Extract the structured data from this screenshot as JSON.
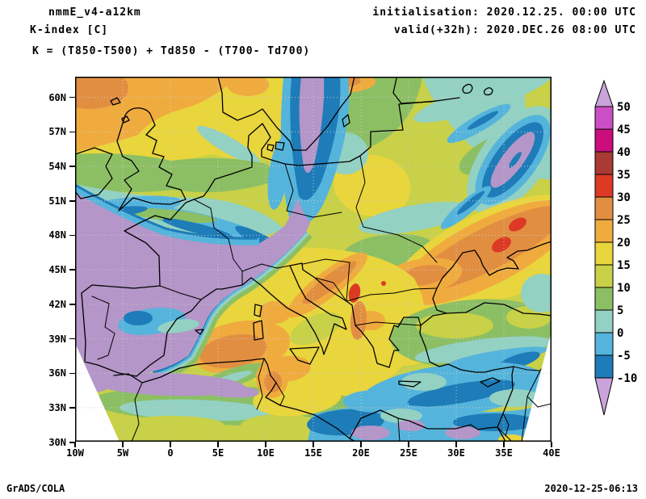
{
  "header": {
    "model": "nmmE_v4-a12km",
    "variable": "K-index [C]",
    "formula": "K = (T850-T500) + Td850 - (T700- Td700)",
    "init": "initialisation: 2020.12.25. 00:00 UTC",
    "valid": "valid(+32h): 2020.DEC.26 08:00 UTC"
  },
  "footer": {
    "left": "GrADS/COLA",
    "right": "2020-12-25-06:13"
  },
  "chart_data": {
    "type": "heatmap",
    "title": "K-index [C]",
    "model": "nmmE_v4-a12km",
    "projection": "lat-lon",
    "lon_ticks": [
      "10W",
      "5W",
      "0",
      "5E",
      "10E",
      "15E",
      "20E",
      "25E",
      "30E",
      "35E",
      "40E"
    ],
    "lat_ticks": [
      "60N",
      "57N",
      "54N",
      "51N",
      "48N",
      "45N",
      "42N",
      "39N",
      "36N",
      "33N",
      "30N"
    ],
    "lon_range_deg": [
      -10,
      40
    ],
    "lat_range_deg": [
      30,
      61.8
    ],
    "grid": "dotted",
    "legend_position": "right",
    "colorbar": {
      "levels_low_to_high": [
        -10,
        -5,
        0,
        5,
        10,
        15,
        20,
        25,
        30,
        35,
        40,
        45,
        50
      ],
      "segment_colors_low_to_high": [
        "#1e7cb8",
        "#55b4dc",
        "#93d1c2",
        "#8cbf64",
        "#c8d147",
        "#e9d53c",
        "#f0ab3f",
        "#e28e41",
        "#dd3a26",
        "#a93a35",
        "#cb0d7d",
        "#cc4ec4"
      ],
      "below_min_color": "#c9a3da",
      "above_max_color": "#c9a3da"
    },
    "features": [
      {
        "area": "Atlantic, Iberia, France, central Europe",
        "k_index": "below -10"
      },
      {
        "area": "northern band 57-62N (Scotland, Norwegian Sea, Scandinavia)",
        "k_index": "15 to 30"
      },
      {
        "area": "English Channel / North Sea diagonal streaks",
        "k_index": "-10 to 5"
      },
      {
        "area": "vertical band near 12E (Denmark to Germany)",
        "k_index": "below -10 ringed by -10 to 0"
      },
      {
        "area": "Poland, Baltics, Belarus, Ukraine",
        "k_index": "5 to 20"
      },
      {
        "area": "elongated lens near 34E 54N",
        "k_index": "below -10 ringed by -10 to 0"
      },
      {
        "area": "Italy, Adriatic, Balkans",
        "k_index": "20 to 30, spot 30-35 near Montenegro"
      },
      {
        "area": "southeast band near Sea of Azov 33-40E",
        "k_index": "25 to 35"
      },
      {
        "area": "Greece, Aegean, central and western Mediterranean",
        "k_index": "15 to 30"
      },
      {
        "area": "Turkey, Anatolia",
        "k_index": "0 to 15"
      },
      {
        "area": "eastern Mediterranean, Libya/Egypt coast",
        "k_index": "-10 to 0 with below -10 patches"
      },
      {
        "area": "northwest Africa band 32-35N",
        "k_index": "0 to 15"
      }
    ]
  },
  "palette": {
    "below": "#b496c9",
    "m10_m5": "#1e7cb8",
    "m5_0": "#55b4dc",
    "p0_5": "#93d1c2",
    "p5_10": "#8cbf64",
    "p10_15": "#c8d147",
    "p15_20": "#e9d53c",
    "p20_25": "#f0ab3f",
    "p25_30": "#e28e41",
    "p30_35": "#dd3a26",
    "p35_40": "#a93a35",
    "p40_45": "#cb0d7d",
    "p45_50": "#cc4ec4",
    "above": "#c9a3da",
    "grid": "#cccccc",
    "outline": "#000000",
    "void": "#ffffff"
  }
}
